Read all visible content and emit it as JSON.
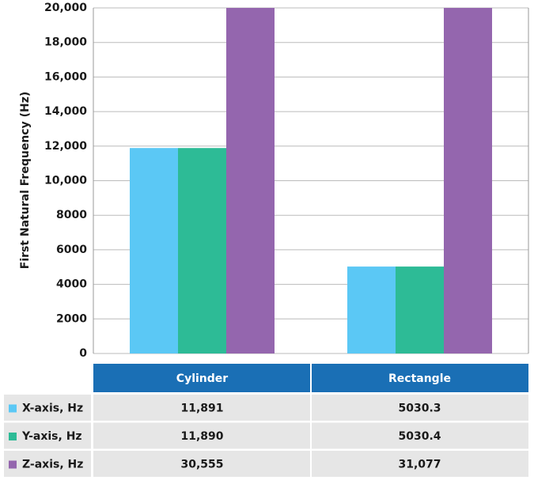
{
  "chart_data": {
    "type": "bar",
    "y_label": "First Natural Frequency (Hz)",
    "categories": [
      "Cylinder",
      "Rectangle"
    ],
    "series": [
      {
        "name": "X-axis, Hz",
        "color": "#5bc8f5",
        "values": [
          11891,
          5030.3
        ],
        "value_labels": [
          "11,891",
          "5030.3"
        ]
      },
      {
        "name": "Y-axis, Hz",
        "color": "#2dbb96",
        "values": [
          11890,
          5030.4
        ],
        "value_labels": [
          "11,890",
          "5030.4"
        ]
      },
      {
        "name": "Z-axis, Hz",
        "color": "#9466ae",
        "values": [
          30555,
          31077
        ],
        "value_labels": [
          "30,555",
          "31,077"
        ]
      }
    ],
    "ylim": [
      0,
      20000
    ],
    "yticks": [
      0,
      2000,
      4000,
      6000,
      8000,
      {
        "value": 10000,
        "label": "10,000"
      },
      {
        "value": 12000,
        "label": "12,000"
      },
      {
        "value": 14000,
        "label": "14,000"
      },
      {
        "value": 16000,
        "label": "16,000"
      },
      {
        "value": 18000,
        "label": "18,000"
      },
      {
        "value": 20000,
        "label": "20,000"
      }
    ],
    "grid": true
  }
}
